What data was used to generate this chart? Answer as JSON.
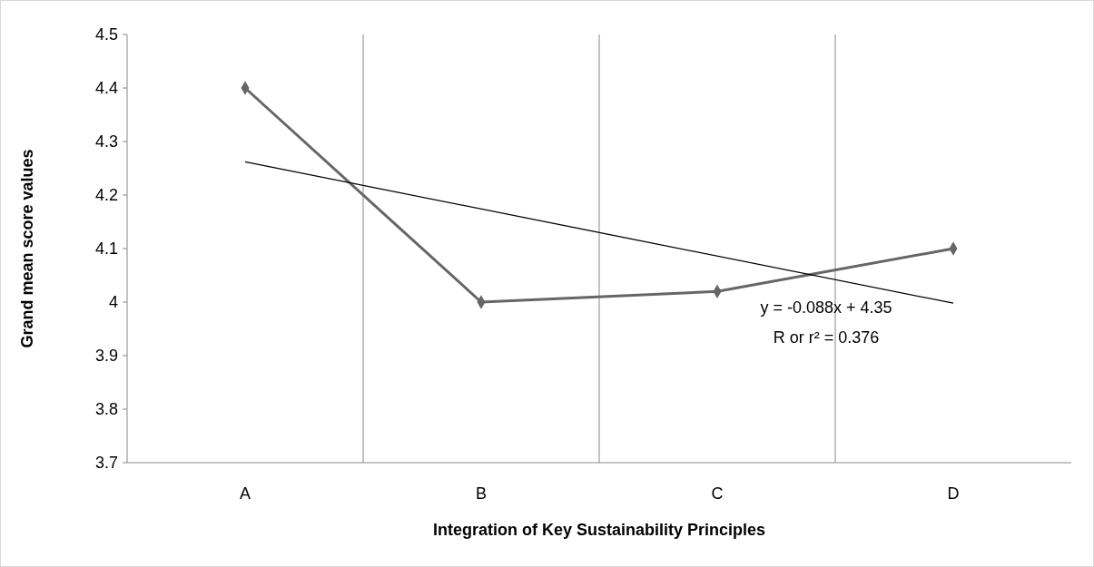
{
  "chart_data": {
    "type": "line",
    "xlabel": "Integration of Key Sustainability Principles",
    "ylabel": "Grand mean score values",
    "categories": [
      "A",
      "B",
      "C",
      "D"
    ],
    "series": [
      {
        "color": "#666666",
        "values": [
          4.4,
          4.0,
          4.02,
          4.1
        ],
        "marker": "diamond"
      },
      {
        "type": "line",
        "color": "#000000",
        "x": [
          "A",
          "D"
        ],
        "values": [
          4.262,
          3.998
        ],
        "marker": "none"
      }
    ],
    "ylim": [
      3.7,
      4.5
    ],
    "yticks": [
      3.7,
      3.8,
      3.9,
      4,
      4.1,
      4.2,
      4.3,
      4.4,
      4.5
    ],
    "grid": "x",
    "annotations": [
      "y = -0.088x + 4.35",
      "R or r² = 0.376"
    ]
  }
}
